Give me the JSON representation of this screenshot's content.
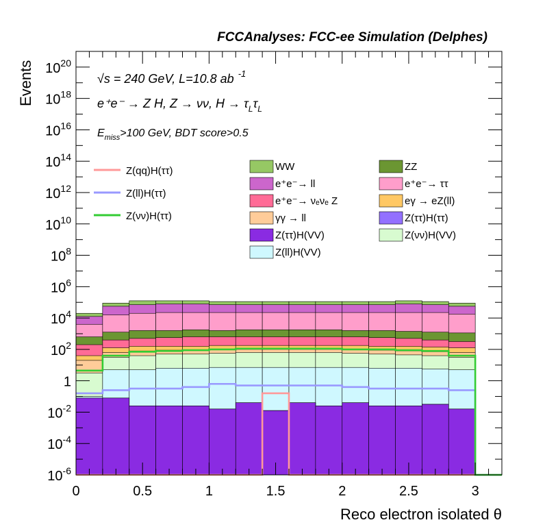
{
  "chart_data": {
    "type": "area",
    "title": "FCCAnalyses: FCC-ee Simulation (Delphes)",
    "xlabel": "Reco electron isolated θ",
    "ylabel": "Events",
    "xlim": [
      0,
      3.2
    ],
    "ylim_log10": [
      -6,
      21
    ],
    "yscale": "log",
    "x_tick_labels": [
      "0",
      "0.5",
      "1",
      "1.5",
      "2",
      "2.5",
      "3"
    ],
    "y_tick_labels": [
      {
        "base": "10",
        "exp": "20"
      },
      {
        "base": "10",
        "exp": "18"
      },
      {
        "base": "10",
        "exp": "16"
      },
      {
        "base": "10",
        "exp": "14"
      },
      {
        "base": "10",
        "exp": "12"
      },
      {
        "base": "10",
        "exp": "10"
      },
      {
        "base": "10",
        "exp": "8"
      },
      {
        "base": "10",
        "exp": "6"
      },
      {
        "base": "10",
        "exp": "4"
      },
      {
        "base": "10",
        "exp": "2"
      },
      {
        "base": "1",
        "exp": ""
      },
      {
        "base": "10",
        "exp": "-2"
      },
      {
        "base": "10",
        "exp": "-4"
      },
      {
        "base": "10",
        "exp": "-6"
      }
    ],
    "annotations": {
      "line1": "√s = 240 GeV, L=10.8 ab",
      "line1_sup": "-1",
      "line2": "e⁺e⁻ → Z H, Z → νν, H → τ",
      "line2_sub1": "L",
      "line2_tau": "τ",
      "line2_sub2": "L",
      "line3_pre": "E",
      "line3_sub": "miss",
      "line3_post": ">100 GeV, BDT score>0.5"
    },
    "bin_edges": [
      0,
      0.2,
      0.4,
      0.6,
      0.8,
      1.0,
      1.2,
      1.4,
      1.6,
      1.8,
      2.0,
      2.2,
      2.4,
      2.6,
      2.8,
      3.0,
      3.2
    ],
    "stack_note": "Stacked backgrounds listed bottom-to-top; value is cumulative log10(events) at top edge of each layer per bin",
    "stack": [
      {
        "name": "Z(ττ)H(VV)",
        "color": "#8a2be2",
        "log10_top": [
          -1.1,
          -1.1,
          -1.6,
          -1.6,
          -1.6,
          -1.8,
          -1.4,
          -1.9,
          -1.4,
          -1.6,
          -1.4,
          -1.6,
          -1.6,
          -1.5,
          -1.8,
          -9
        ]
      },
      {
        "name": "Z(ττ)H(ττ)",
        "color": "#9370ff",
        "log10_top": [
          -1.1,
          -1.1,
          -1.6,
          -1.6,
          -1.6,
          -1.8,
          -1.4,
          -1.9,
          -1.4,
          -1.6,
          -1.4,
          -1.6,
          -1.6,
          -1.5,
          -1.8,
          -9
        ]
      },
      {
        "name": "Z(ll)H(VV)",
        "color": "#cff8ff",
        "log10_top": [
          -1.0,
          0.7,
          0.7,
          0.8,
          0.8,
          0.85,
          0.85,
          0.85,
          0.85,
          0.85,
          0.85,
          0.8,
          0.8,
          0.75,
          0.7,
          -9
        ]
      },
      {
        "name": "Z(νν)H(VV)",
        "color": "#d8fbd0",
        "log10_top": [
          0.5,
          1.5,
          1.6,
          1.7,
          1.7,
          1.75,
          1.8,
          1.8,
          1.8,
          1.8,
          1.75,
          1.7,
          1.65,
          1.6,
          1.5,
          -9
        ]
      },
      {
        "name": "γγ → ll",
        "color": "#ffcc99",
        "log10_top": [
          1.3,
          1.8,
          1.9,
          1.95,
          1.95,
          2.0,
          2.0,
          2.0,
          2.0,
          2.0,
          2.0,
          1.95,
          1.9,
          1.85,
          1.8,
          -9
        ]
      },
      {
        "name": "eγ → eZ(ll)",
        "color": "#ffc864",
        "log10_top": [
          1.6,
          2.1,
          2.2,
          2.2,
          2.2,
          2.25,
          2.25,
          2.25,
          2.25,
          2.25,
          2.25,
          2.2,
          2.2,
          2.15,
          2.1,
          -9
        ]
      },
      {
        "name": "e⁺e⁻→ ν_eν_e Z",
        "color": "#ff6b96",
        "log10_top": [
          2.3,
          2.6,
          2.7,
          2.75,
          2.8,
          2.8,
          2.8,
          2.8,
          2.8,
          2.8,
          2.8,
          2.75,
          2.7,
          2.6,
          2.5,
          -9
        ]
      },
      {
        "name": "ZZ",
        "color": "#6b9632",
        "log10_top": [
          2.8,
          3.1,
          3.2,
          3.2,
          3.25,
          3.2,
          3.25,
          3.25,
          3.25,
          3.25,
          3.2,
          3.2,
          3.15,
          3.1,
          3.05,
          -9
        ]
      },
      {
        "name": "e⁺e⁻→ ττ",
        "color": "#ff9ecb",
        "log10_top": [
          3.6,
          4.2,
          4.3,
          4.35,
          4.35,
          4.35,
          4.35,
          4.35,
          4.35,
          4.35,
          4.35,
          4.35,
          4.35,
          4.35,
          4.25,
          -9
        ]
      },
      {
        "name": "e⁺e⁻→ ll",
        "color": "#cc66cc",
        "log10_top": [
          4.1,
          4.75,
          4.85,
          4.9,
          4.9,
          4.85,
          4.85,
          4.85,
          4.85,
          4.85,
          4.85,
          4.85,
          4.9,
          4.85,
          4.75,
          -9
        ]
      },
      {
        "name": "WW",
        "color": "#96c864",
        "log10_top": [
          4.3,
          4.95,
          5.1,
          5.1,
          5.1,
          5.05,
          5.05,
          5.05,
          5.05,
          5.05,
          5.05,
          5.05,
          5.1,
          5.05,
          4.95,
          -9
        ]
      }
    ],
    "lines": [
      {
        "name": "Z(qq)H(ττ)",
        "color": "#ff9999",
        "log10": [
          -9,
          -9,
          -9,
          -9,
          -9,
          -9,
          -9,
          -0.8,
          -9,
          -9,
          -9,
          -9,
          -9,
          -9,
          -9,
          -9
        ]
      },
      {
        "name": "Z(ll)H(ττ)",
        "color": "#9999ff",
        "log10": [
          -0.8,
          -0.6,
          -0.5,
          -0.5,
          -0.4,
          -0.2,
          -0.3,
          -0.3,
          -0.3,
          -0.3,
          -0.4,
          -0.5,
          -0.5,
          -0.5,
          -0.6,
          -9
        ]
      },
      {
        "name": "Z(νν)H(ττ)",
        "color": "#33cc33",
        "log10": [
          0.65,
          1.6,
          1.85,
          1.9,
          1.95,
          2.0,
          2.05,
          2.05,
          2.05,
          2.05,
          2.0,
          2.0,
          1.95,
          1.9,
          1.6,
          -9
        ]
      }
    ],
    "legend_lines": [
      {
        "name": "Z(qq)H(ττ)",
        "color": "#ff9999"
      },
      {
        "name": "Z(ll)H(ττ)",
        "color": "#9999ff"
      },
      {
        "name": "Z(νν)H(ττ)",
        "color": "#33cc33"
      }
    ],
    "legend_fill": [
      {
        "name": "WW",
        "color": "#96c864"
      },
      {
        "name": "ZZ",
        "color": "#6b9632"
      },
      {
        "name": "e⁺e⁻→ ll",
        "color": "#cc66cc"
      },
      {
        "name": "e⁺e⁻→ ττ",
        "color": "#ff9ecb"
      },
      {
        "name": "e⁺e⁻→ νₑνₑ Z",
        "color": "#ff6b96"
      },
      {
        "name": "eγ → eZ(ll)",
        "color": "#ffc864"
      },
      {
        "name": "γγ → ll",
        "color": "#ffcc99"
      },
      {
        "name": "Z(ττ)H(ττ)",
        "color": "#9370ff"
      },
      {
        "name": "Z(ττ)H(VV)",
        "color": "#8a2be2"
      },
      {
        "name": "Z(νν)H(VV)",
        "color": "#d8fbd0"
      },
      {
        "name": "Z(ll)H(VV)",
        "color": "#cff8ff"
      }
    ]
  }
}
